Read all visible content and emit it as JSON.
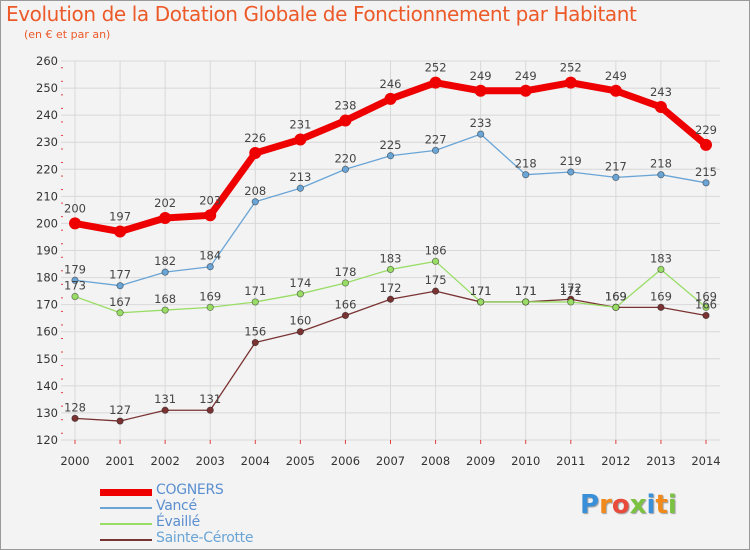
{
  "chart_data": {
    "type": "line",
    "title": "Evolution de la Dotation Globale de Fonctionnement par Habitant",
    "subtitle": "(en € et par an)",
    "x": [
      "2000",
      "2001",
      "2002",
      "2003",
      "2004",
      "2005",
      "2006",
      "2007",
      "2008",
      "2009",
      "2010",
      "2011",
      "2012",
      "2013",
      "2014"
    ],
    "ylim": [
      120,
      260
    ],
    "yticks": [
      120,
      130,
      140,
      150,
      160,
      170,
      180,
      190,
      200,
      210,
      220,
      230,
      240,
      250,
      260
    ],
    "grid": true,
    "legend_position": "bottom-left",
    "series": [
      {
        "name": "COGNERS",
        "color": "#ee0000",
        "values": [
          200,
          197,
          202,
          203,
          226,
          231,
          238,
          246,
          252,
          249,
          249,
          252,
          249,
          243,
          229
        ]
      },
      {
        "name": "Vancé",
        "color": "#6aa5d6",
        "values": [
          179,
          177,
          182,
          184,
          208,
          213,
          220,
          225,
          227,
          233,
          218,
          219,
          217,
          218,
          215
        ]
      },
      {
        "name": "Évaillé",
        "color": "#99dd66",
        "values": [
          173,
          167,
          168,
          169,
          171,
          174,
          178,
          183,
          186,
          171,
          171,
          171,
          169,
          183,
          169
        ]
      },
      {
        "name": "Sainte-Cérotte",
        "color": "#7a3333",
        "values": [
          128,
          127,
          131,
          131,
          156,
          160,
          166,
          172,
          175,
          171,
          171,
          172,
          169,
          169,
          166
        ]
      }
    ]
  },
  "logo": {
    "letters": [
      "P",
      "r",
      "o",
      "x",
      "i",
      "t",
      "i"
    ],
    "colors": [
      "#3a8fd9",
      "#f08a1c",
      "#e84a3c",
      "#7cc242",
      "#3a8fd9",
      "#f08a1c",
      "#7cc242"
    ]
  }
}
